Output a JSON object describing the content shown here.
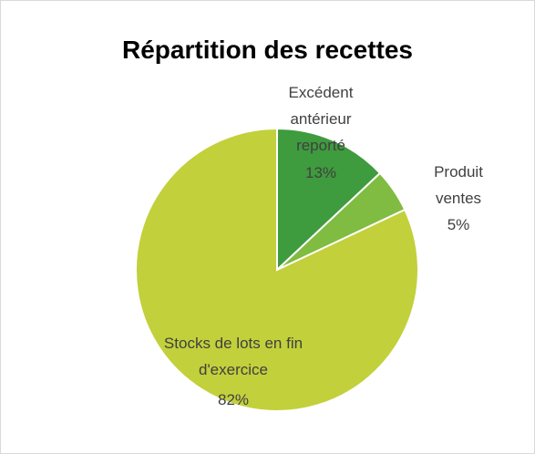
{
  "chart_data": {
    "type": "pie",
    "title": "Répartition des recettes",
    "categories": [
      "Excédent antérieur reporté",
      "Produit ventes",
      "Stocks de lots en fin d'exercice"
    ],
    "values": [
      13,
      5,
      82
    ],
    "value_labels": [
      "13%",
      "5%",
      "82%"
    ],
    "colors": [
      "#3e9b3e",
      "#7fbc41",
      "#c2d03b"
    ]
  }
}
